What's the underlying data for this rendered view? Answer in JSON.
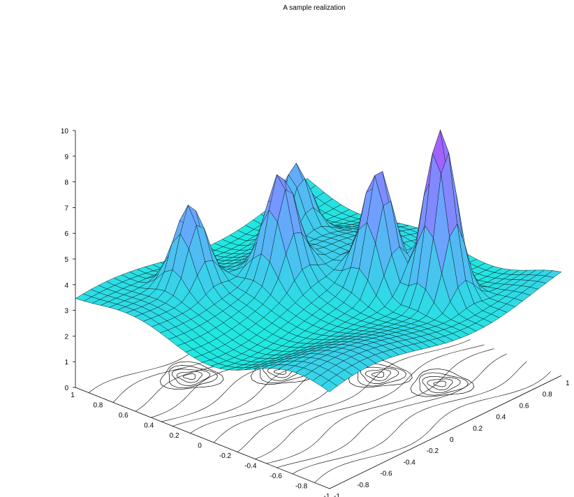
{
  "chart_data": {
    "type": "surface",
    "title": "A sample realization",
    "xlabel": "",
    "ylabel": "",
    "zlabel": "",
    "xlim": [
      -1,
      1
    ],
    "ylim": [
      -1,
      1
    ],
    "zlim": [
      0,
      10
    ],
    "x_ticks": [
      "-1",
      "-0.8",
      "-0.6",
      "-0.4",
      "-0.2",
      "0",
      "0.2",
      "0.4",
      "0.6",
      "0.8",
      "1"
    ],
    "y_ticks": [
      "-1",
      "-0.8",
      "-0.6",
      "-0.4",
      "-0.2",
      "0",
      "0.2",
      "0.4",
      "0.6",
      "0.8",
      "1"
    ],
    "z_ticks": [
      "0",
      "1",
      "2",
      "3",
      "4",
      "5",
      "6",
      "7",
      "8",
      "9",
      "10"
    ],
    "base_level": 3.5,
    "peaks": [
      {
        "x": 0.45,
        "y": -0.55,
        "height": 10.3
      },
      {
        "x": 0.3,
        "y": -0.2,
        "height": 8.0
      },
      {
        "x": -0.05,
        "y": 0.25,
        "height": 7.3
      },
      {
        "x": -0.45,
        "y": 0.6,
        "height": 6.7
      },
      {
        "x": 0.45,
        "y": 0.6,
        "height": 6.4
      }
    ],
    "grid": true,
    "contour_projection": true,
    "colormap": [
      "#20e8e0",
      "#6fa0ff",
      "#b34cff"
    ]
  }
}
